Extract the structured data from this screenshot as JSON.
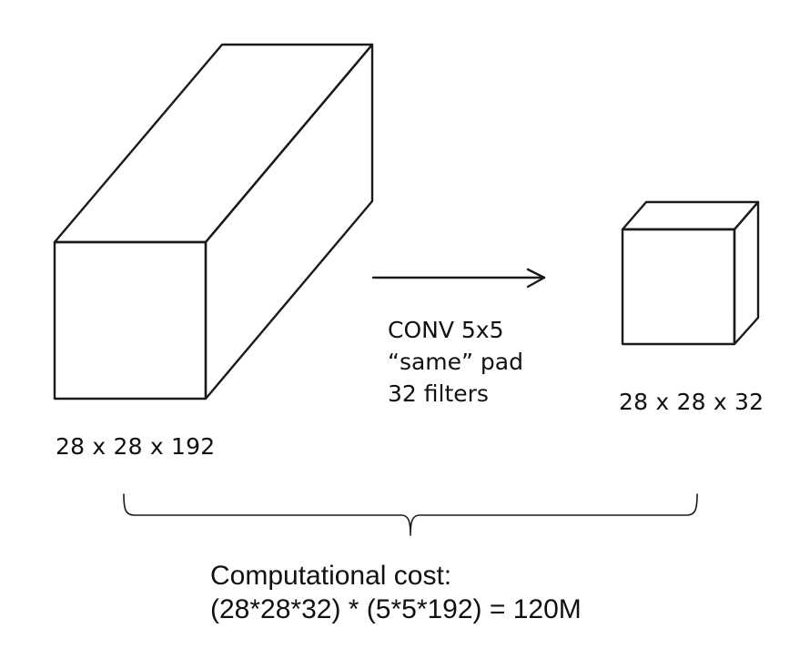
{
  "input_volume": {
    "dims_label": "28 x 28 x 192"
  },
  "operation": {
    "line1": "CONV 5x5",
    "line2": "“same” pad",
    "line3": "32 filters"
  },
  "output_volume": {
    "dims_label": "28 x 28 x 32"
  },
  "cost": {
    "title": "Computational cost:",
    "formula": "(28*28*32) * (5*5*192) = 120M"
  },
  "colors": {
    "stroke": "#1a1a1a",
    "text": "#111111",
    "background": "#ffffff"
  }
}
